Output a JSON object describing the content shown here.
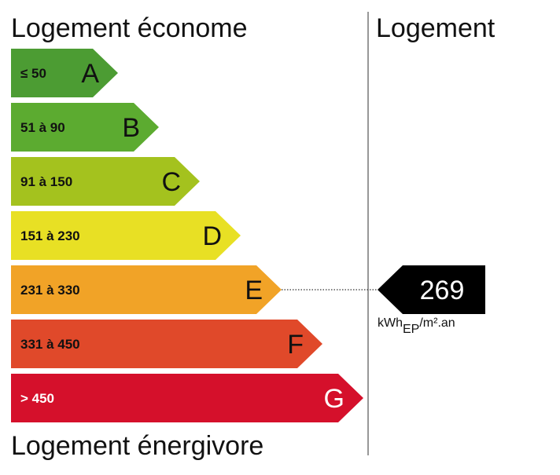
{
  "header": {
    "left": "Logement économe",
    "right": "Logement"
  },
  "footer": "Logement énergivore",
  "classes": [
    {
      "range": "≤ 50",
      "letter": "A",
      "color": "#4c9c33",
      "label_color": "#111111"
    },
    {
      "range": "51 à 90",
      "letter": "B",
      "color": "#5cab30",
      "label_color": "#111111"
    },
    {
      "range": "91 à 150",
      "letter": "C",
      "color": "#a4c21e",
      "label_color": "#111111"
    },
    {
      "range": "151 à 230",
      "letter": "D",
      "color": "#e8e024",
      "label_color": "#111111"
    },
    {
      "range": "231 à 330",
      "letter": "E",
      "color": "#f1a327",
      "label_color": "#111111"
    },
    {
      "range": "331 à 450",
      "letter": "F",
      "color": "#e0492a",
      "label_color": "#111111"
    },
    {
      "range": "> 450",
      "letter": "G",
      "color": "#d5102b",
      "label_color": "#ffffff"
    }
  ],
  "indicator": {
    "value": "269",
    "unit": "kWh",
    "unit_sub": "EP",
    "unit_suffix": "/m².an"
  }
}
